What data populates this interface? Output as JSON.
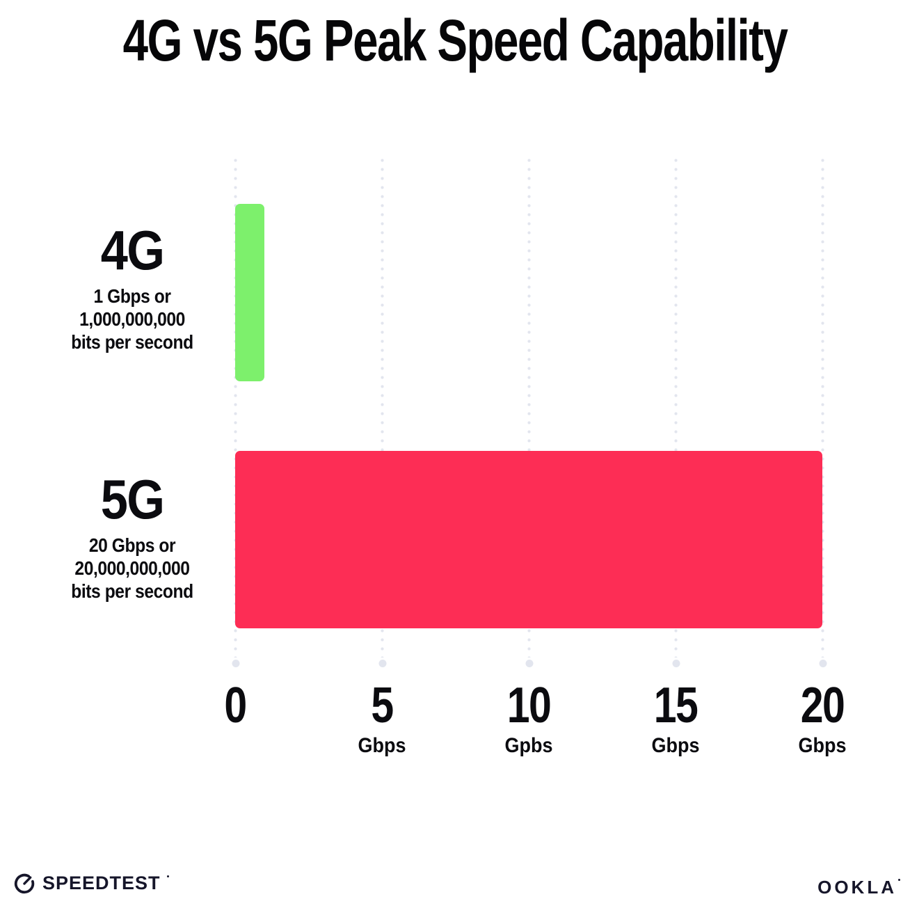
{
  "title": "4G vs 5G Peak Speed Capability",
  "chart_data": {
    "type": "bar",
    "orientation": "horizontal",
    "title": "4G vs 5G Peak Speed Capability",
    "categories": [
      "4G",
      "5G"
    ],
    "values": [
      1,
      20
    ],
    "bar_colors": [
      "#7df06c",
      "#fd2d55"
    ],
    "xlim": [
      0,
      20
    ],
    "grid": "dotted-vertical-gridlines",
    "legend": "none",
    "row_labels": [
      {
        "name": "4G",
        "lines": [
          "1 Gbps or",
          "1,000,000,000",
          "bits per second"
        ]
      },
      {
        "name": "5G",
        "lines": [
          "20 Gbps or",
          "20,000,000,000",
          "bits per second"
        ]
      }
    ],
    "x_ticks": [
      {
        "value": 0,
        "label": "0",
        "unit": ""
      },
      {
        "value": 5,
        "label": "5",
        "unit": "Gbps"
      },
      {
        "value": 10,
        "label": "10",
        "unit": "Gpbs"
      },
      {
        "value": 15,
        "label": "15",
        "unit": "Gbps"
      },
      {
        "value": 20,
        "label": "20",
        "unit": "Gbps"
      }
    ]
  },
  "colors": {
    "bar_4g_green": "#7df06c",
    "bar_5g_pink": "#fd2d55",
    "gridline_dot": "#e2e5ee",
    "text": "#0b0b0f"
  },
  "footer": {
    "left_logo": "SPEEDTEST",
    "right_logo": "OOKLA"
  }
}
